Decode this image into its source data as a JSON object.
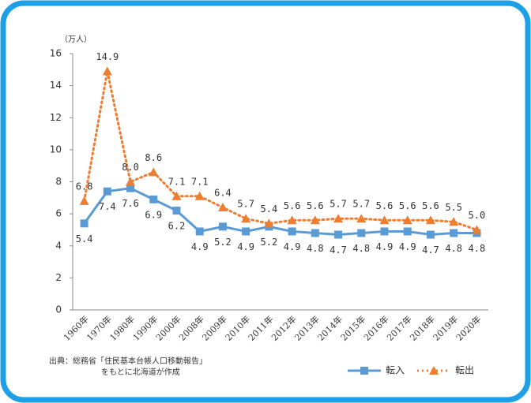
{
  "chart_data": {
    "type": "line",
    "y_unit": "（万人）",
    "categories": [
      "1960年",
      "1970年",
      "1980年",
      "1990年",
      "2000年",
      "2008年",
      "2009年",
      "2010年",
      "2011年",
      "2012年",
      "2013年",
      "2014年",
      "2015年",
      "2016年",
      "2017年",
      "2018年",
      "2019年",
      "2020年"
    ],
    "series": [
      {
        "name": "転入",
        "color": "#5b9bd5",
        "values": [
          5.4,
          7.4,
          7.6,
          6.9,
          6.2,
          4.9,
          5.2,
          4.9,
          5.2,
          4.9,
          4.8,
          4.7,
          4.8,
          4.9,
          4.9,
          4.7,
          4.8,
          4.8
        ],
        "value_labels": [
          "5.4",
          "7.4",
          "7.6",
          "6.9",
          "6.2",
          "4.9",
          "5.2",
          "4.9",
          "5.2",
          "4.9",
          "4.8",
          "4.7",
          "4.8",
          "4.9",
          "4.9",
          "4.7",
          "4.8",
          "4.8"
        ]
      },
      {
        "name": "転出",
        "color": "#ed7d31",
        "values": [
          6.8,
          14.9,
          8.0,
          8.6,
          7.1,
          7.1,
          6.4,
          5.7,
          5.4,
          5.6,
          5.6,
          5.7,
          5.7,
          5.6,
          5.6,
          5.6,
          5.5,
          5.0
        ],
        "value_labels": [
          "6.8",
          "14.9",
          "8.0",
          "8.6",
          "7.1",
          "7.1",
          "6.4",
          "5.7",
          "5.4",
          "5.6",
          "5.6",
          "5.7",
          "5.7",
          "5.6",
          "5.6",
          "5.6",
          "5.5",
          "5.0"
        ]
      }
    ],
    "ylim": [
      0,
      16
    ],
    "yticks": [
      0,
      2,
      4,
      6,
      8,
      10,
      12,
      14,
      16
    ],
    "grid": false,
    "source": [
      "出典：総務省「住民基本台帳人口移動報告」",
      "をもとに北海道が作成"
    ],
    "legend": "bottom-right"
  }
}
